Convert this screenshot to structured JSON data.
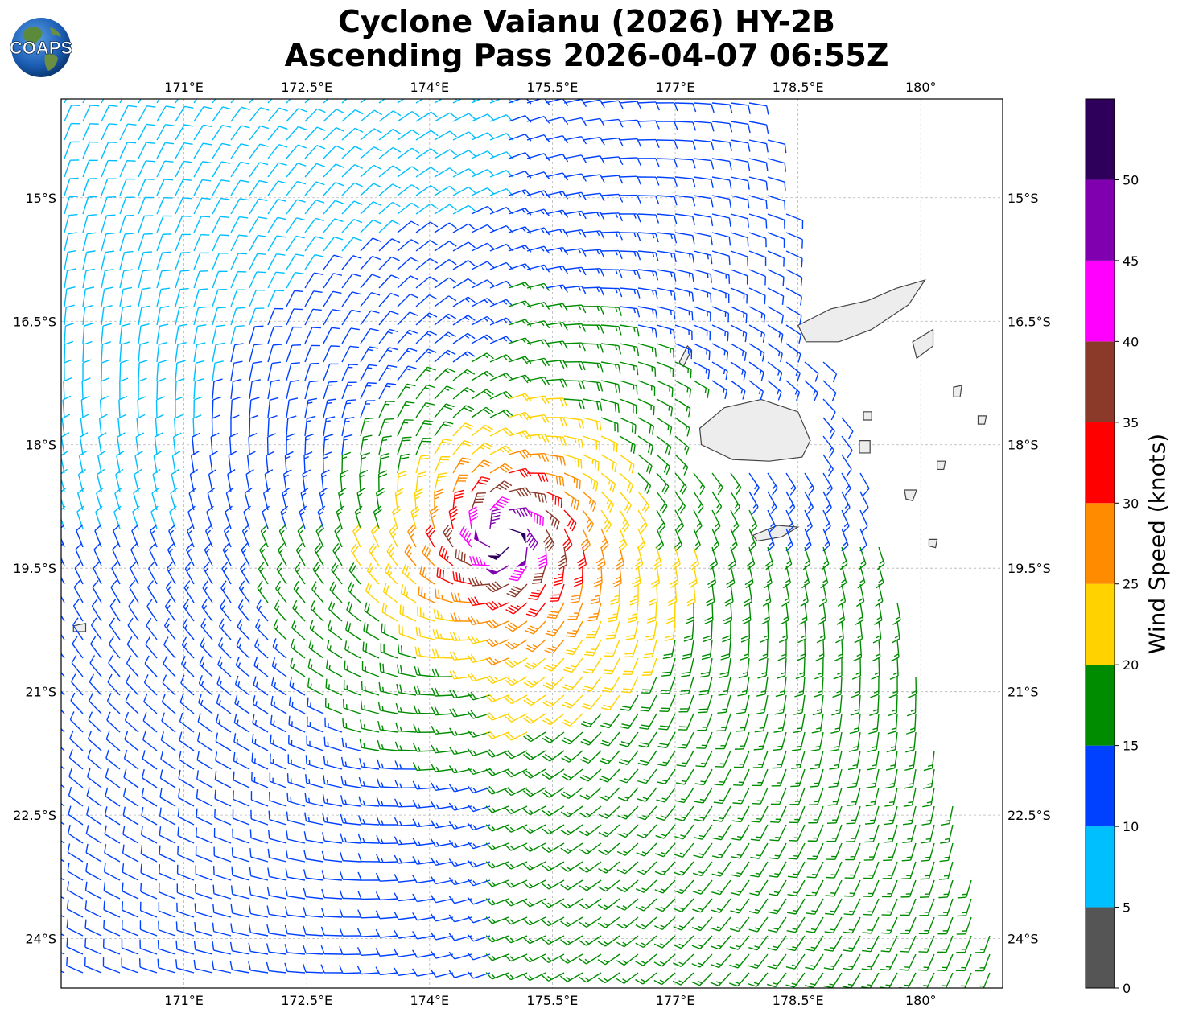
{
  "title": {
    "line1": "Cyclone Vaianu (2026) HY-2B",
    "line2": "Ascending Pass 2026-04-07 06:55Z"
  },
  "logo": {
    "text": "COAPS",
    "icon": "globe-logo"
  },
  "map": {
    "lon_range": [
      169.5,
      181.0
    ],
    "lat_range": [
      -13.8,
      -24.6
    ],
    "x_ticks": [
      {
        "value": 171.0,
        "label": "171°E"
      },
      {
        "value": 172.5,
        "label": "172.5°E"
      },
      {
        "value": 174.0,
        "label": "174°E"
      },
      {
        "value": 175.5,
        "label": "175.5°E"
      },
      {
        "value": 177.0,
        "label": "177°E"
      },
      {
        "value": 178.5,
        "label": "178.5°E"
      },
      {
        "value": 180.0,
        "label": "180°"
      }
    ],
    "y_ticks": [
      {
        "value": -15.0,
        "label": "15°S"
      },
      {
        "value": -16.5,
        "label": "16.5°S"
      },
      {
        "value": -18.0,
        "label": "18°S"
      },
      {
        "value": -19.5,
        "label": "19.5°S"
      },
      {
        "value": -21.0,
        "label": "21°S"
      },
      {
        "value": -22.5,
        "label": "22.5°S"
      },
      {
        "value": -24.0,
        "label": "24°S"
      }
    ],
    "grid": true,
    "storm_center": {
      "lon": 174.9,
      "lat": -19.1
    },
    "land_color": "#ededed",
    "land_stroke": "#444444",
    "islands": [
      {
        "name": "Viti Levu",
        "points": [
          [
            177.3,
            -17.8
          ],
          [
            177.6,
            -17.55
          ],
          [
            178.05,
            -17.45
          ],
          [
            178.5,
            -17.6
          ],
          [
            178.65,
            -17.95
          ],
          [
            178.55,
            -18.15
          ],
          [
            178.15,
            -18.2
          ],
          [
            177.7,
            -18.18
          ],
          [
            177.32,
            -18.0
          ]
        ]
      },
      {
        "name": "Vanua Levu",
        "points": [
          [
            178.5,
            -16.55
          ],
          [
            178.9,
            -16.35
          ],
          [
            179.35,
            -16.25
          ],
          [
            179.7,
            -16.1
          ],
          [
            180.05,
            -16.0
          ],
          [
            179.85,
            -16.3
          ],
          [
            179.4,
            -16.6
          ],
          [
            179.0,
            -16.75
          ],
          [
            178.6,
            -16.75
          ]
        ]
      },
      {
        "name": "Taveuni",
        "points": [
          [
            179.9,
            -16.75
          ],
          [
            180.15,
            -16.6
          ],
          [
            180.15,
            -16.8
          ],
          [
            179.95,
            -16.95
          ]
        ]
      },
      {
        "name": "Kadavu",
        "points": [
          [
            177.95,
            -19.1
          ],
          [
            178.25,
            -18.98
          ],
          [
            178.5,
            -19.0
          ],
          [
            178.3,
            -19.12
          ],
          [
            178.0,
            -19.17
          ]
        ]
      },
      {
        "name": "Lau 1",
        "points": [
          [
            180.4,
            -17.3
          ],
          [
            180.5,
            -17.28
          ],
          [
            180.48,
            -17.42
          ],
          [
            180.4,
            -17.42
          ]
        ]
      },
      {
        "name": "Lau 2",
        "points": [
          [
            179.3,
            -17.6
          ],
          [
            179.4,
            -17.6
          ],
          [
            179.4,
            -17.7
          ],
          [
            179.3,
            -17.7
          ]
        ]
      },
      {
        "name": "Lau 3",
        "points": [
          [
            180.2,
            -18.2
          ],
          [
            180.3,
            -18.2
          ],
          [
            180.28,
            -18.3
          ],
          [
            180.2,
            -18.3
          ]
        ]
      },
      {
        "name": "Lau 4",
        "points": [
          [
            179.8,
            -18.55
          ],
          [
            179.95,
            -18.55
          ],
          [
            179.9,
            -18.68
          ],
          [
            179.82,
            -18.66
          ]
        ]
      },
      {
        "name": "Lau 5",
        "points": [
          [
            179.25,
            -17.95
          ],
          [
            179.38,
            -17.95
          ],
          [
            179.38,
            -18.1
          ],
          [
            179.25,
            -18.1
          ]
        ]
      },
      {
        "name": "Lau 6",
        "points": [
          [
            180.7,
            -17.65
          ],
          [
            180.8,
            -17.65
          ],
          [
            180.78,
            -17.75
          ],
          [
            180.7,
            -17.75
          ]
        ]
      },
      {
        "name": "Yasawa",
        "points": [
          [
            177.05,
            -17.0
          ],
          [
            177.15,
            -16.8
          ],
          [
            177.2,
            -16.85
          ],
          [
            177.1,
            -17.05
          ]
        ]
      },
      {
        "name": "Lau 7",
        "points": [
          [
            180.1,
            -19.15
          ],
          [
            180.2,
            -19.15
          ],
          [
            180.18,
            -19.25
          ],
          [
            180.1,
            -19.23
          ]
        ]
      },
      {
        "name": "Hunter",
        "points": [
          [
            169.65,
            -20.2
          ],
          [
            169.8,
            -20.17
          ],
          [
            169.8,
            -20.27
          ],
          [
            169.65,
            -20.27
          ]
        ]
      }
    ]
  },
  "colorbar": {
    "label": "Wind Speed (knots)",
    "bins": [
      {
        "min": 0,
        "max": 5,
        "color": "#555555"
      },
      {
        "min": 5,
        "max": 10,
        "color": "#00bfff"
      },
      {
        "min": 10,
        "max": 15,
        "color": "#0040ff"
      },
      {
        "min": 15,
        "max": 20,
        "color": "#008c00"
      },
      {
        "min": 20,
        "max": 25,
        "color": "#ffd200"
      },
      {
        "min": 25,
        "max": 30,
        "color": "#ff8c00"
      },
      {
        "min": 30,
        "max": 35,
        "color": "#ff0000"
      },
      {
        "min": 35,
        "max": 40,
        "color": "#8b3a2a"
      },
      {
        "min": 40,
        "max": 45,
        "color": "#ff00ff"
      },
      {
        "min": 45,
        "max": 50,
        "color": "#8000b0"
      },
      {
        "min": 50,
        "max": 55,
        "color": "#2e005c"
      }
    ],
    "ticks": [
      "0",
      "5",
      "10",
      "15",
      "20",
      "25",
      "30",
      "35",
      "40",
      "45",
      "50"
    ]
  }
}
